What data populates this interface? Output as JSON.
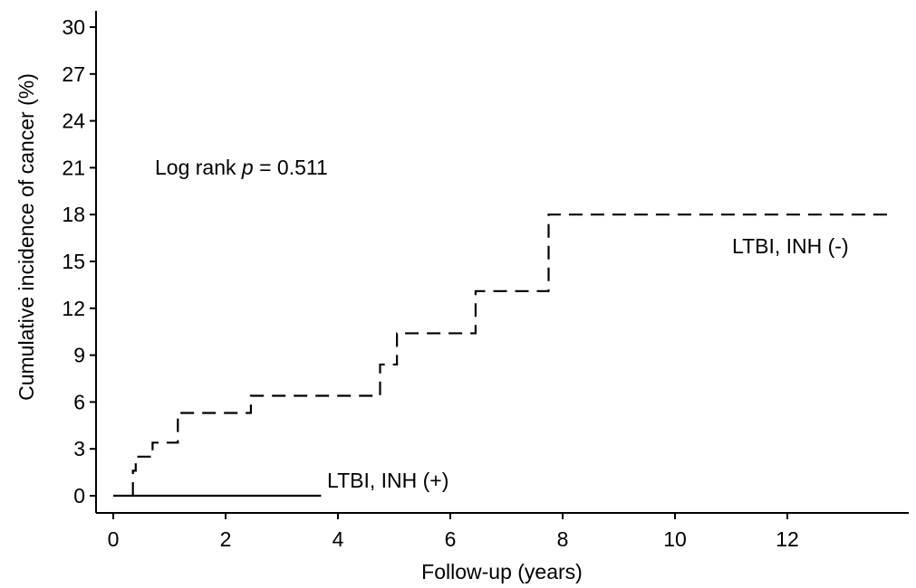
{
  "chart_data": {
    "type": "line",
    "title": "",
    "xlabel": "Follow-up (years)",
    "ylabel": "Cumulative incidence of cancer (%)",
    "xlim": [
      0,
      14
    ],
    "ylim": [
      0,
      30
    ],
    "xticks": [
      0,
      2,
      4,
      6,
      8,
      10,
      12
    ],
    "yticks": [
      0,
      3,
      6,
      9,
      12,
      15,
      18,
      21,
      24,
      27,
      30
    ],
    "grid": false,
    "series": [
      {
        "name": "LTBI, INH (-)",
        "style": "dashed",
        "step": true,
        "x": [
          0.35,
          0.4,
          0.7,
          1.15,
          2.45,
          4.75,
          5.05,
          6.45,
          7.75,
          13.9
        ],
        "y": [
          1.6,
          2.5,
          3.4,
          5.3,
          6.4,
          8.4,
          10.4,
          13.1,
          18.0,
          18.0
        ]
      },
      {
        "name": "LTBI, INH (+)",
        "style": "solid",
        "step": true,
        "x": [
          0,
          3.7
        ],
        "y": [
          0,
          0
        ]
      }
    ],
    "annotations": {
      "pvalue_prefix": "Log rank ",
      "pvalue_var": "p",
      "pvalue_suffix": " = 0.511"
    }
  }
}
